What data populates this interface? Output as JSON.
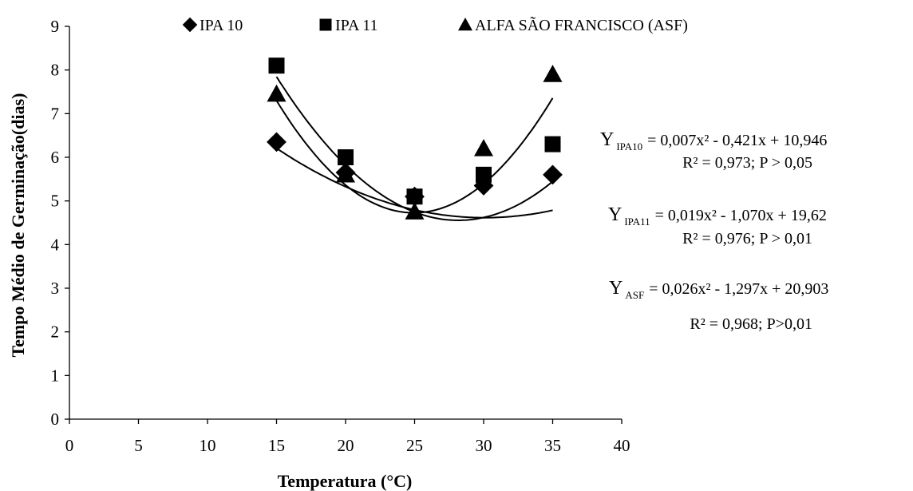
{
  "chart_data": {
    "type": "scatter",
    "xlabel": "Temperatura (°C)",
    "ylabel": "Tempo Médio de Germinação(dias)",
    "xlim": [
      0,
      40
    ],
    "ylim": [
      0,
      9
    ],
    "xticks": [
      0,
      5,
      10,
      15,
      20,
      25,
      30,
      35,
      40
    ],
    "yticks": [
      0,
      1,
      2,
      3,
      4,
      5,
      6,
      7,
      8,
      9
    ],
    "grid": false,
    "legend_position": "top",
    "x": [
      15,
      20,
      25,
      30,
      35
    ],
    "series": [
      {
        "name": "IPA 10",
        "marker": "diamond",
        "values": [
          6.35,
          5.65,
          5.1,
          5.35,
          5.6
        ],
        "fit": {
          "a": 0.007,
          "b": -0.421,
          "c": 10.946
        }
      },
      {
        "name": "IPA 11",
        "marker": "square",
        "values": [
          8.1,
          6.0,
          5.1,
          5.6,
          6.3
        ],
        "fit": {
          "a": 0.019,
          "b": -1.07,
          "c": 19.62
        }
      },
      {
        "name": "ALFA SÃO FRANCISCO (ASF)",
        "marker": "triangle",
        "values": [
          7.45,
          5.6,
          4.75,
          6.2,
          7.9
        ],
        "fit": {
          "a": 0.026,
          "b": -1.297,
          "c": 20.903
        }
      }
    ],
    "equations": [
      {
        "y": "Y",
        "sub": "IPA10",
        "rhs": "= 0,007x² - 0,421x + 10,946",
        "stats": "R² = 0,973; P > 0,05"
      },
      {
        "y": "Y",
        "sub": "IPA11",
        "rhs": "= 0,019x² - 1,070x + 19,62",
        "stats": "R² = 0,976; P > 0,01"
      },
      {
        "y": "Y",
        "sub": "ASF",
        "rhs": "= 0,026x² - 1,297x + 20,903",
        "stats": "R² = 0,968; P>0,01"
      }
    ]
  }
}
